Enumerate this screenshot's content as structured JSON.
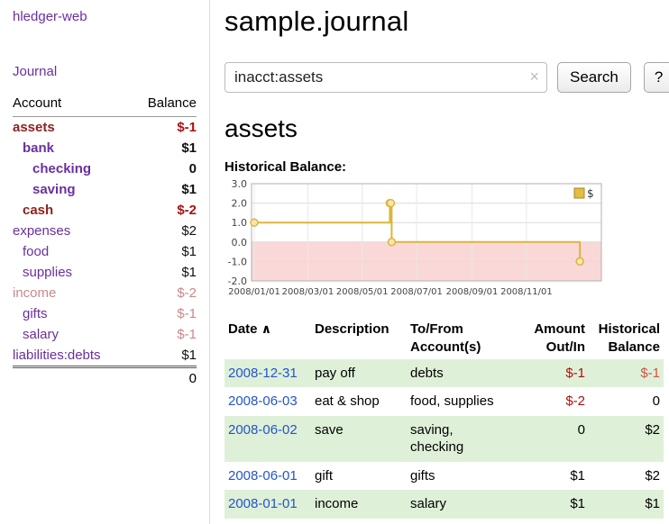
{
  "colors": {
    "link_purple": "#6a2fa0",
    "maroon": "#8f2121",
    "negative_red": "#aa1111",
    "balance_red": "#cc5544",
    "faded_red": "#c98989",
    "table_link_blue": "#2255cc",
    "row_green": "#dff0d8",
    "chart_gold": "#ddb43c",
    "chart_gold_fill": "#f5e6b0",
    "chart_neg_bg": "#fbd8d8",
    "divider": "#dddddd"
  },
  "sidebar": {
    "app_title": "hledger-web",
    "journal_link": "Journal",
    "accounts_header": {
      "account": "Account",
      "balance": "Balance"
    },
    "accounts": [
      {
        "name": "assets",
        "indent": 0,
        "bold": true,
        "name_class": "maroon",
        "balance": "$-1",
        "balance_class": "red"
      },
      {
        "name": "bank",
        "indent": 1,
        "bold": true,
        "name_class": "purple",
        "balance": "$1",
        "balance_class": "black"
      },
      {
        "name": "checking",
        "indent": 2,
        "bold": true,
        "name_class": "purple",
        "balance": "0",
        "balance_class": "black"
      },
      {
        "name": "saving",
        "indent": 2,
        "bold": true,
        "name_class": "purple",
        "balance": "$1",
        "balance_class": "black"
      },
      {
        "name": "cash",
        "indent": 1,
        "bold": true,
        "name_class": "maroon",
        "balance": "$-2",
        "balance_class": "red"
      },
      {
        "name": "expenses",
        "indent": 0,
        "bold": false,
        "name_class": "purple",
        "balance": "$2",
        "balance_class": "black"
      },
      {
        "name": "food",
        "indent": 1,
        "bold": false,
        "name_class": "purple",
        "balance": "$1",
        "balance_class": "black"
      },
      {
        "name": "supplies",
        "indent": 1,
        "bold": false,
        "name_class": "purple",
        "balance": "$1",
        "balance_class": "black"
      },
      {
        "name": "income",
        "indent": 0,
        "bold": false,
        "name_class": "fadedred",
        "balance": "$-2",
        "balance_class": "fadedred"
      },
      {
        "name": "gifts",
        "indent": 1,
        "bold": false,
        "name_class": "purple",
        "balance": "$-1",
        "balance_class": "fadedred"
      },
      {
        "name": "salary",
        "indent": 1,
        "bold": false,
        "name_class": "purple",
        "balance": "$-1",
        "balance_class": "fadedred"
      },
      {
        "name": "liabilities:debts",
        "indent": 0,
        "bold": false,
        "name_class": "purple",
        "balance": "$1",
        "balance_class": "black"
      }
    ],
    "total": "0"
  },
  "main": {
    "title": "sample.journal",
    "search": {
      "value": "inacct:assets",
      "clear_icon": "×",
      "button": "Search",
      "help_button": "?"
    },
    "account_heading": "assets",
    "chart_label": "Historical Balance:"
  },
  "chart_data": {
    "type": "line",
    "title": "Historical Balance",
    "step": true,
    "legend": [
      {
        "label": "$",
        "color": "#e4bc3f"
      }
    ],
    "legend_position": "top-right",
    "grid": true,
    "negative_region_shaded": true,
    "ylim": [
      -2,
      3
    ],
    "xlim": [
      "2007-12-29",
      "2009-01-24"
    ],
    "yticks": [
      {
        "value": 3,
        "label": "3.0"
      },
      {
        "value": 2,
        "label": "2.0"
      },
      {
        "value": 1,
        "label": "1.0"
      },
      {
        "value": 0,
        "label": "0.0"
      },
      {
        "value": -1,
        "label": "-1.0"
      },
      {
        "value": -2,
        "label": "-2.0"
      }
    ],
    "xticks": [
      {
        "date": "2008-01-01",
        "label": "2008/01/01"
      },
      {
        "date": "2008-03-01",
        "label": "2008/03/01"
      },
      {
        "date": "2008-05-01",
        "label": "2008/05/01"
      },
      {
        "date": "2008-07-01",
        "label": "2008/07/01"
      },
      {
        "date": "2008-09-01",
        "label": "2008/09/01"
      },
      {
        "date": "2008-11-01",
        "label": "2008/11/01"
      }
    ],
    "series": [
      {
        "name": "$",
        "points": [
          [
            "2008-01-01",
            1
          ],
          [
            "2008-06-01",
            2
          ],
          [
            "2008-06-02",
            2
          ],
          [
            "2008-06-03",
            0
          ],
          [
            "2008-12-31",
            -1
          ]
        ]
      }
    ]
  },
  "register": {
    "headers": {
      "date": "Date",
      "sort_indicator": "∧",
      "description": "Description",
      "accounts": "To/From\nAccount(s)",
      "amount": "Amount\nOut/In",
      "balance": "Historical\nBalance"
    },
    "rows": [
      {
        "date": "2008-12-31",
        "description": "pay off",
        "accounts": "debts",
        "amount": "$-1",
        "amount_negative": true,
        "balance": "$-1",
        "balance_negative": true,
        "shaded": true
      },
      {
        "date": "2008-06-03",
        "description": "eat & shop",
        "accounts": "food, supplies",
        "amount": "$-2",
        "amount_negative": true,
        "balance": "0",
        "balance_negative": false,
        "shaded": false
      },
      {
        "date": "2008-06-02",
        "description": "save",
        "accounts": "saving,\nchecking",
        "amount": "0",
        "amount_negative": false,
        "balance": "$2",
        "balance_negative": false,
        "shaded": true
      },
      {
        "date": "2008-06-01",
        "description": "gift",
        "accounts": "gifts",
        "amount": "$1",
        "amount_negative": false,
        "balance": "$2",
        "balance_negative": false,
        "shaded": false
      },
      {
        "date": "2008-01-01",
        "description": "income",
        "accounts": "salary",
        "amount": "$1",
        "amount_negative": false,
        "balance": "$1",
        "balance_negative": false,
        "shaded": true
      }
    ]
  }
}
